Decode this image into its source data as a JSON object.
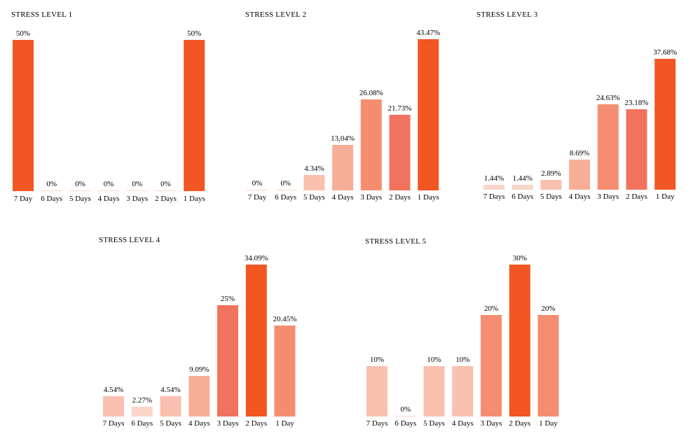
{
  "colors": {
    "level1": "#ffffff",
    "level2": "#fad6c8",
    "level3": "#f9c0b0",
    "level4": "#f7ae97",
    "level5": "#f58e71",
    "level6": "#f2735d",
    "level7": "#f25622"
  },
  "chart_data": [
    {
      "type": "bar",
      "title": "STRESS LEVEL 1",
      "categories": [
        "7 Day",
        "6 Days",
        "5 Days",
        "4 Days",
        "3 Days",
        "2 Days",
        "1 Days"
      ],
      "values": [
        50,
        0,
        0,
        0,
        0,
        0,
        50
      ],
      "labels": [
        "50%",
        "0%",
        "0%",
        "0%",
        "0%",
        "0%",
        "50%"
      ],
      "bar_colors": [
        "#f25622",
        "#fad6c8",
        "#fad6c8",
        "#fad6c8",
        "#fad6c8",
        "#fad6c8",
        "#f25622"
      ],
      "ylim": [
        0,
        50
      ]
    },
    {
      "type": "bar",
      "title": "STRESS LEVEL 2",
      "categories": [
        "7 Day",
        "6 Days",
        "5 Days",
        "4 Days",
        "3 Days",
        "2 Days",
        "1 Days"
      ],
      "values": [
        0,
        0,
        4.34,
        13.04,
        26.08,
        21.73,
        43.47
      ],
      "labels": [
        "0%",
        "0%",
        "4.34%",
        "13,04%",
        "26.08%",
        "21.73%",
        "43.47%"
      ],
      "bar_colors": [
        "#fad6c8",
        "#fad6c8",
        "#f9c0b0",
        "#f7ae97",
        "#f58e71",
        "#f2735d",
        "#f25622"
      ],
      "ylim": [
        0,
        43.47
      ]
    },
    {
      "type": "bar",
      "title": "STRESS LEVEL 3",
      "categories": [
        "7 Days",
        "6 Days",
        "5 Days",
        "4 Days",
        "3 Days",
        "2 Days",
        "1 Day"
      ],
      "values": [
        1.44,
        1.44,
        2.89,
        8.69,
        24.63,
        23.18,
        37.68
      ],
      "labels": [
        "1.44%",
        "1.44%",
        "2.89%",
        "8.69%",
        "24.63%",
        "23.18%",
        "37.68%"
      ],
      "bar_colors": [
        "#fad6c8",
        "#fad6c8",
        "#f9c0b0",
        "#f7ae97",
        "#f58e71",
        "#f2735d",
        "#f25622"
      ],
      "ylim": [
        0,
        43.47
      ]
    },
    {
      "type": "bar",
      "title": "STRESS LEVEL 4",
      "categories": [
        "7 Days",
        "6 Days",
        "5 Days",
        "4 Days",
        "3 Days",
        "2 Days",
        "1 Day"
      ],
      "values": [
        4.54,
        2.27,
        4.54,
        9.09,
        25,
        34.09,
        20.45
      ],
      "labels": [
        "4.54%",
        "2.27%",
        "4.54%",
        "9.09%",
        "25%",
        "34.09%",
        "20.45%"
      ],
      "bar_colors": [
        "#f9c0b0",
        "#fad6c8",
        "#f9c0b0",
        "#f7ae97",
        "#f2735d",
        "#f25622",
        "#f58e71"
      ],
      "ylim": [
        0,
        34.09
      ]
    },
    {
      "type": "bar",
      "title": "STRESS LEVEL 5",
      "categories": [
        "7 Days",
        "6 Days",
        "5 Days",
        "4 Days",
        "3 Days",
        "2 Days",
        "1 Day"
      ],
      "values": [
        10,
        0,
        10,
        10,
        20,
        30,
        20
      ],
      "labels": [
        "10%",
        "0%",
        "10%",
        "10%",
        "20%",
        "30%",
        "20%"
      ],
      "bar_colors": [
        "#f9c0b0",
        "#fad6c8",
        "#f9c0b0",
        "#f9c0b0",
        "#f58e71",
        "#f25622",
        "#f58e71"
      ],
      "ylim": [
        0,
        30
      ]
    }
  ]
}
